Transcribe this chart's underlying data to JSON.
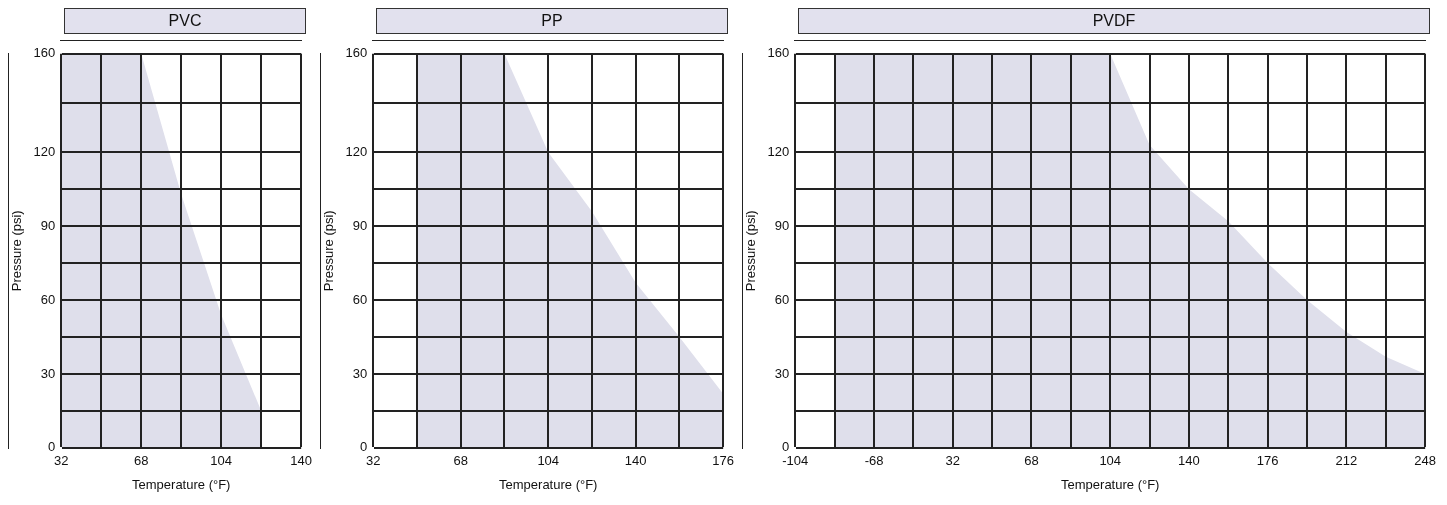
{
  "chart_data": [
    {
      "type": "area",
      "title": "PVC",
      "xlabel": "Temperature (°F)",
      "ylabel": "Pressure (psi)",
      "categories": [
        "32",
        null,
        "68",
        null,
        "104",
        null,
        "140"
      ],
      "color": "#dfdfeb",
      "values": [
        160,
        160,
        160,
        103,
        54,
        15,
        null
      ],
      "ylim": [
        0,
        160
      ],
      "yticks": [
        0,
        {
          "value": 15,
          "label": null
        },
        30,
        {
          "value": 45,
          "label": null
        },
        60,
        {
          "value": 75,
          "label": null
        },
        90,
        {
          "value": 105,
          "label": null
        },
        120,
        {
          "value": 140,
          "label": null
        },
        160
      ],
      "grid": true
    },
    {
      "type": "area",
      "title": "PP",
      "xlabel": "Temperature (°F)",
      "ylabel": "Pressure (psi)",
      "categories": [
        "32",
        null,
        "68",
        null,
        "104",
        null,
        "140",
        null,
        "176"
      ],
      "color": "#dfdfeb",
      "values": [
        null,
        160,
        160,
        160,
        120,
        96,
        67,
        45,
        22
      ],
      "ylim": [
        0,
        160
      ],
      "yticks": [
        0,
        {
          "value": 15,
          "label": null
        },
        30,
        {
          "value": 45,
          "label": null
        },
        60,
        {
          "value": 75,
          "label": null
        },
        90,
        {
          "value": 105,
          "label": null
        },
        120,
        {
          "value": 140,
          "label": null
        },
        160
      ],
      "grid": true
    },
    {
      "type": "area",
      "title": "PVDF",
      "xlabel": "Temperature (°F)",
      "ylabel": "Pressure (psi)",
      "categories": [
        "-104",
        null,
        "-68",
        null,
        "32",
        null,
        "68",
        null,
        "104",
        null,
        "140",
        null,
        "176",
        null,
        "212",
        null,
        "248"
      ],
      "color": "#dfdfeb",
      "values": [
        null,
        160,
        160,
        160,
        160,
        160,
        160,
        160,
        160,
        123,
        105,
        92,
        75,
        60,
        47,
        37,
        30
      ],
      "ylim": [
        0,
        160
      ],
      "yticks": [
        0,
        {
          "value": 15,
          "label": null
        },
        30,
        {
          "value": 45,
          "label": null
        },
        60,
        {
          "value": 75,
          "label": null
        },
        90,
        {
          "value": 105,
          "label": null
        },
        120,
        {
          "value": 140,
          "label": null
        },
        160
      ],
      "grid": true
    }
  ]
}
